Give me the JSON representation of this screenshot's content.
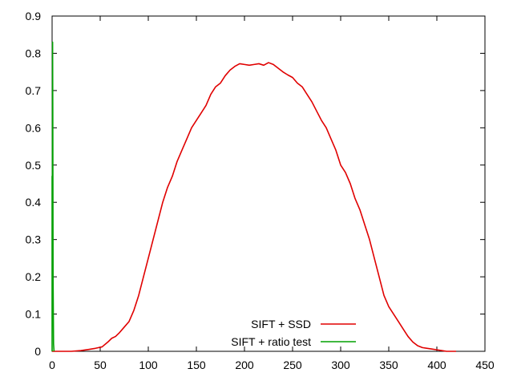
{
  "chart_data": {
    "type": "line",
    "title": "",
    "xlabel": "",
    "ylabel": "",
    "xlim": [
      0,
      450
    ],
    "ylim": [
      0,
      0.9
    ],
    "xticks": [
      0,
      50,
      100,
      150,
      200,
      250,
      300,
      350,
      400,
      450
    ],
    "yticks": [
      0,
      0.1,
      0.2,
      0.3,
      0.4,
      0.5,
      0.6,
      0.7,
      0.8,
      0.9
    ],
    "grid": false,
    "legend_position": "bottom-center",
    "series": [
      {
        "name": "SIFT + SSD",
        "color": "#e00000",
        "x": [
          0,
          20,
          30,
          38,
          45,
          52,
          58,
          62,
          66,
          70,
          75,
          80,
          85,
          90,
          95,
          100,
          105,
          110,
          115,
          120,
          125,
          130,
          135,
          140,
          145,
          150,
          155,
          160,
          165,
          170,
          175,
          180,
          185,
          190,
          195,
          200,
          205,
          210,
          215,
          220,
          225,
          230,
          235,
          240,
          245,
          250,
          255,
          260,
          265,
          270,
          275,
          280,
          285,
          290,
          295,
          300,
          305,
          310,
          315,
          320,
          325,
          330,
          335,
          340,
          345,
          350,
          355,
          360,
          365,
          370,
          375,
          380,
          385,
          390,
          395,
          400,
          405,
          410,
          415,
          420
        ],
        "y": [
          0,
          0,
          0.002,
          0.005,
          0.008,
          0.012,
          0.025,
          0.035,
          0.04,
          0.05,
          0.065,
          0.08,
          0.11,
          0.15,
          0.2,
          0.25,
          0.3,
          0.35,
          0.4,
          0.44,
          0.47,
          0.51,
          0.54,
          0.57,
          0.6,
          0.62,
          0.64,
          0.66,
          0.69,
          0.71,
          0.72,
          0.74,
          0.755,
          0.765,
          0.772,
          0.77,
          0.768,
          0.77,
          0.772,
          0.768,
          0.775,
          0.77,
          0.76,
          0.75,
          0.742,
          0.735,
          0.72,
          0.71,
          0.69,
          0.67,
          0.645,
          0.62,
          0.6,
          0.57,
          0.54,
          0.5,
          0.48,
          0.45,
          0.41,
          0.38,
          0.34,
          0.3,
          0.25,
          0.2,
          0.15,
          0.12,
          0.1,
          0.08,
          0.06,
          0.04,
          0.025,
          0.015,
          0.01,
          0.008,
          0.006,
          0.004,
          0.002,
          0,
          0,
          0
        ]
      },
      {
        "name": "SIFT + ratio test",
        "color": "#00a000",
        "x": [
          0,
          0,
          0.3,
          0.5,
          0.7,
          1.0,
          1.5,
          2
        ],
        "y": [
          0,
          0.47,
          0.47,
          0.83,
          0.65,
          0.2,
          0.02,
          0
        ]
      }
    ]
  }
}
